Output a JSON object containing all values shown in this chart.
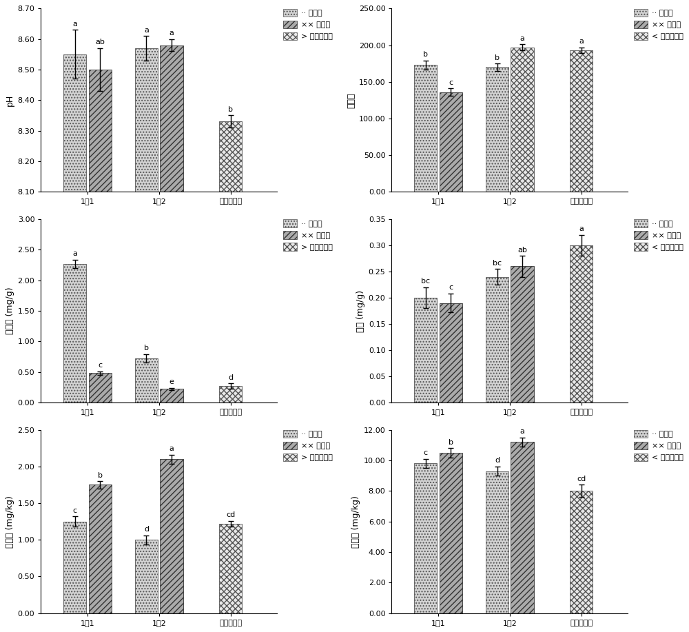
{
  "panels": [
    {
      "ylabel": "pH",
      "ylim": [
        8.1,
        8.7
      ],
      "yticks": [
        8.1,
        8.2,
        8.3,
        8.4,
        8.5,
        8.6,
        8.7
      ],
      "ytick_labels": [
        "8.10",
        "8.20",
        "8.30",
        "8.40",
        "8.50",
        "8.60",
        "8.70"
      ],
      "groups": [
        "1：1",
        "1：2",
        "自然恢复区"
      ],
      "bar_data": [
        [
          {
            "si": 0,
            "val": 8.55,
            "err": 0.08,
            "lbl": "a"
          },
          {
            "si": 1,
            "val": 8.5,
            "err": 0.07,
            "lbl": "ab"
          }
        ],
        [
          {
            "si": 0,
            "val": 8.57,
            "err": 0.04,
            "lbl": "a"
          },
          {
            "si": 1,
            "val": 8.58,
            "err": 0.02,
            "lbl": "a"
          }
        ],
        [
          {
            "si": 2,
            "val": 8.33,
            "err": 0.02,
            "lbl": "b"
          }
        ]
      ],
      "legend_prefix": [
        "..",
        "××",
        ">"
      ],
      "legend_labels": [
        "对照区",
        "接菌区",
        "自然恢复区"
      ]
    },
    {
      "ylabel": "电导率",
      "ylim": [
        0,
        250
      ],
      "yticks": [
        0,
        50,
        100,
        150,
        200,
        250
      ],
      "ytick_labels": [
        "0.00",
        "50.00",
        "100.00",
        "150.00",
        "200.00",
        "250.00"
      ],
      "groups": [
        "1：1",
        "1：2",
        "自然恢复区"
      ],
      "bar_data": [
        [
          {
            "si": 0,
            "val": 173,
            "err": 6,
            "lbl": "b"
          },
          {
            "si": 1,
            "val": 136,
            "err": 5,
            "lbl": "c"
          }
        ],
        [
          {
            "si": 0,
            "val": 170,
            "err": 5,
            "lbl": "b"
          },
          {
            "si": 2,
            "val": 197,
            "err": 4,
            "lbl": "a"
          }
        ],
        [
          {
            "si": 2,
            "val": 193,
            "err": 4,
            "lbl": "a"
          }
        ]
      ],
      "legend_prefix": [
        "..",
        "××",
        "<"
      ],
      "legend_labels": [
        "对照区",
        "接菌区",
        "自然恢复区"
      ]
    },
    {
      "ylabel": "有机碗 (mg/g)",
      "ylim": [
        0,
        3.0
      ],
      "yticks": [
        0.0,
        0.5,
        1.0,
        1.5,
        2.0,
        2.5,
        3.0
      ],
      "ytick_labels": [
        "0.00",
        "0.50",
        "1.00",
        "1.50",
        "2.00",
        "2.50",
        "3.00"
      ],
      "groups": [
        "1：1",
        "1：2",
        "自然恢复区"
      ],
      "bar_data": [
        [
          {
            "si": 0,
            "val": 2.27,
            "err": 0.07,
            "lbl": "a"
          },
          {
            "si": 1,
            "val": 0.48,
            "err": 0.03,
            "lbl": "c"
          }
        ],
        [
          {
            "si": 0,
            "val": 0.72,
            "err": 0.07,
            "lbl": "b"
          },
          {
            "si": 1,
            "val": 0.22,
            "err": 0.02,
            "lbl": "e"
          }
        ],
        [
          {
            "si": 2,
            "val": 0.27,
            "err": 0.04,
            "lbl": "d"
          }
        ]
      ],
      "legend_prefix": [
        "..",
        "××",
        ">"
      ],
      "legend_labels": [
        "对照区",
        "接菌区",
        "自然恢复区"
      ]
    },
    {
      "ylabel": "全氮 (mg/g)",
      "ylim": [
        0,
        0.35
      ],
      "yticks": [
        0.0,
        0.05,
        0.1,
        0.15,
        0.2,
        0.25,
        0.3,
        0.35
      ],
      "ytick_labels": [
        "0.00",
        "0.05",
        "0.10",
        "0.15",
        "0.20",
        "0.25",
        "0.30",
        "0.35"
      ],
      "groups": [
        "1：1",
        "1：2",
        "自然恢复区"
      ],
      "bar_data": [
        [
          {
            "si": 0,
            "val": 0.2,
            "err": 0.02,
            "lbl": "bc"
          },
          {
            "si": 1,
            "val": 0.19,
            "err": 0.018,
            "lbl": "c"
          }
        ],
        [
          {
            "si": 0,
            "val": 0.24,
            "err": 0.015,
            "lbl": "bc"
          },
          {
            "si": 1,
            "val": 0.26,
            "err": 0.02,
            "lbl": "ab"
          }
        ],
        [
          {
            "si": 2,
            "val": 0.3,
            "err": 0.02,
            "lbl": "a"
          }
        ]
      ],
      "legend_prefix": [
        "..",
        "××",
        "<"
      ],
      "legend_labels": [
        "对照区",
        "接菌区",
        "自然恢复区"
      ]
    },
    {
      "ylabel": "确态氮 (mg/kg)",
      "ylim": [
        0,
        2.5
      ],
      "yticks": [
        0.0,
        0.5,
        1.0,
        1.5,
        2.0,
        2.5
      ],
      "ytick_labels": [
        "0.00",
        "0.50",
        "1.00",
        "1.50",
        "2.00",
        "2.50"
      ],
      "groups": [
        "1：1",
        "1：2",
        "自然恢复区"
      ],
      "bar_data": [
        [
          {
            "si": 0,
            "val": 1.25,
            "err": 0.07,
            "lbl": "c"
          },
          {
            "si": 1,
            "val": 1.75,
            "err": 0.05,
            "lbl": "b"
          }
        ],
        [
          {
            "si": 0,
            "val": 1.0,
            "err": 0.06,
            "lbl": "d"
          },
          {
            "si": 1,
            "val": 2.1,
            "err": 0.06,
            "lbl": "a"
          }
        ],
        [
          {
            "si": 2,
            "val": 1.22,
            "err": 0.04,
            "lbl": "cd"
          }
        ]
      ],
      "legend_prefix": [
        "..",
        "××",
        ">"
      ],
      "legend_labels": [
        "对照区",
        "接菌区",
        "自然恢复区"
      ]
    },
    {
      "ylabel": "锄态氮 (mg/kg)",
      "ylim": [
        0,
        12.0
      ],
      "yticks": [
        0.0,
        2.0,
        4.0,
        6.0,
        8.0,
        10.0,
        12.0
      ],
      "ytick_labels": [
        "0.00",
        "2.00",
        "4.00",
        "6.00",
        "8.00",
        "10.00",
        "12.00"
      ],
      "groups": [
        "1：1",
        "1：2",
        "自然恢复区"
      ],
      "bar_data": [
        [
          {
            "si": 0,
            "val": 9.8,
            "err": 0.3,
            "lbl": "c"
          },
          {
            "si": 1,
            "val": 10.5,
            "err": 0.3,
            "lbl": "b"
          }
        ],
        [
          {
            "si": 0,
            "val": 9.3,
            "err": 0.3,
            "lbl": "d"
          },
          {
            "si": 1,
            "val": 11.2,
            "err": 0.3,
            "lbl": "a"
          }
        ],
        [
          {
            "si": 2,
            "val": 8.0,
            "err": 0.4,
            "lbl": "cd"
          }
        ]
      ],
      "legend_prefix": [
        "..",
        "××",
        "<"
      ],
      "legend_labels": [
        "对照区",
        "接菌区",
        "自然恢复区"
      ]
    }
  ],
  "series_styles": [
    {
      "hatch": "....",
      "facecolor": "#d3d3d3",
      "edgecolor": "#555555"
    },
    {
      "hatch": "////",
      "facecolor": "#aaaaaa",
      "edgecolor": "#333333"
    },
    {
      "hatch": "xxxx",
      "facecolor": "#e8e8e8",
      "edgecolor": "#555555"
    }
  ],
  "bar_width": 0.32,
  "fig_width": 10.0,
  "fig_height": 9.17,
  "dpi": 100
}
